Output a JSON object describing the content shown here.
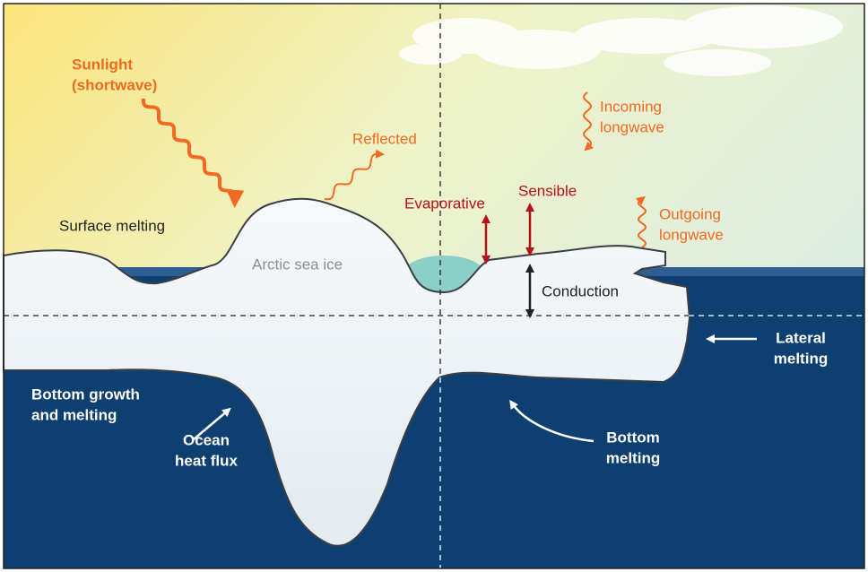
{
  "labels": [
    {
      "lines": [
        "Sunlight",
        "(shortwave)"
      ]
    },
    {
      "lines": [
        "Reflected"
      ]
    },
    {
      "lines": [
        "Incoming",
        "longwave"
      ]
    },
    {
      "lines": [
        "Evaporative"
      ]
    },
    {
      "lines": [
        "Sensible"
      ]
    },
    {
      "lines": [
        "Outgoing",
        "longwave"
      ]
    },
    {
      "lines": [
        "Surface melting"
      ]
    },
    {
      "lines": [
        "Arctic sea ice"
      ]
    },
    {
      "lines": [
        "Conduction"
      ]
    },
    {
      "lines": [
        "Lateral",
        "melting"
      ]
    },
    {
      "lines": [
        "Bottom growth",
        "and melting"
      ]
    },
    {
      "lines": [
        "Ocean",
        "heat flux"
      ]
    },
    {
      "lines": [
        "Bottom",
        "melting"
      ]
    }
  ]
}
